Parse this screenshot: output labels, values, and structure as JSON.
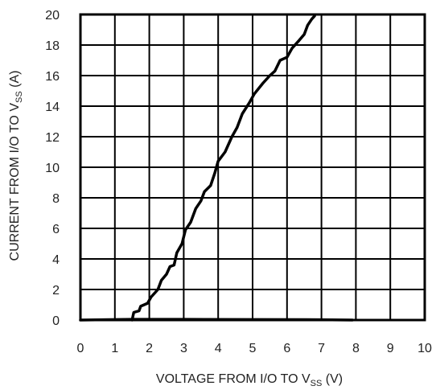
{
  "chart_data": {
    "type": "line",
    "title": "",
    "xlabel": {
      "main": "VOLTAGE FROM I/O TO V",
      "sub": "SS",
      "unit": " (V)"
    },
    "ylabel": {
      "main": "CURRENT FROM I/O TO V",
      "sub": "SS",
      "unit": " (A)"
    },
    "xlim": [
      0,
      10
    ],
    "ylim": [
      0,
      20
    ],
    "x_ticks": [
      0,
      1,
      2,
      3,
      4,
      5,
      6,
      7,
      8,
      9,
      10
    ],
    "y_ticks": [
      0,
      2,
      4,
      6,
      8,
      10,
      12,
      14,
      16,
      18,
      20
    ],
    "grid": true,
    "series": [
      {
        "color": "#000000",
        "points": [
          [
            0.0,
            0.0
          ],
          [
            1.5,
            0.05
          ],
          [
            3.0,
            0.05
          ],
          [
            5.0,
            0.03
          ],
          [
            7.0,
            0.02
          ],
          [
            7.9,
            0.0
          ]
        ]
      },
      {
        "color": "#000000",
        "points": [
          [
            1.5,
            0.0
          ],
          [
            1.55,
            0.5
          ],
          [
            1.7,
            0.6
          ],
          [
            1.75,
            0.9
          ],
          [
            1.95,
            1.1
          ],
          [
            2.05,
            1.5
          ],
          [
            2.25,
            2.0
          ],
          [
            2.35,
            2.6
          ],
          [
            2.5,
            3.0
          ],
          [
            2.6,
            3.5
          ],
          [
            2.72,
            3.6
          ],
          [
            2.8,
            4.4
          ],
          [
            2.95,
            5.0
          ],
          [
            3.05,
            5.9
          ],
          [
            3.2,
            6.4
          ],
          [
            3.35,
            7.3
          ],
          [
            3.5,
            7.8
          ],
          [
            3.6,
            8.4
          ],
          [
            3.78,
            8.8
          ],
          [
            3.9,
            9.6
          ],
          [
            4.0,
            10.4
          ],
          [
            4.2,
            11.0
          ],
          [
            4.4,
            12.0
          ],
          [
            4.55,
            12.6
          ],
          [
            4.7,
            13.5
          ],
          [
            4.9,
            14.2
          ],
          [
            5.05,
            14.8
          ],
          [
            5.3,
            15.5
          ],
          [
            5.5,
            16.0
          ],
          [
            5.65,
            16.3
          ],
          [
            5.8,
            17.0
          ],
          [
            6.0,
            17.2
          ],
          [
            6.15,
            17.8
          ],
          [
            6.35,
            18.3
          ],
          [
            6.5,
            18.7
          ],
          [
            6.6,
            19.3
          ],
          [
            6.72,
            19.7
          ],
          [
            6.8,
            19.9
          ]
        ]
      }
    ]
  }
}
